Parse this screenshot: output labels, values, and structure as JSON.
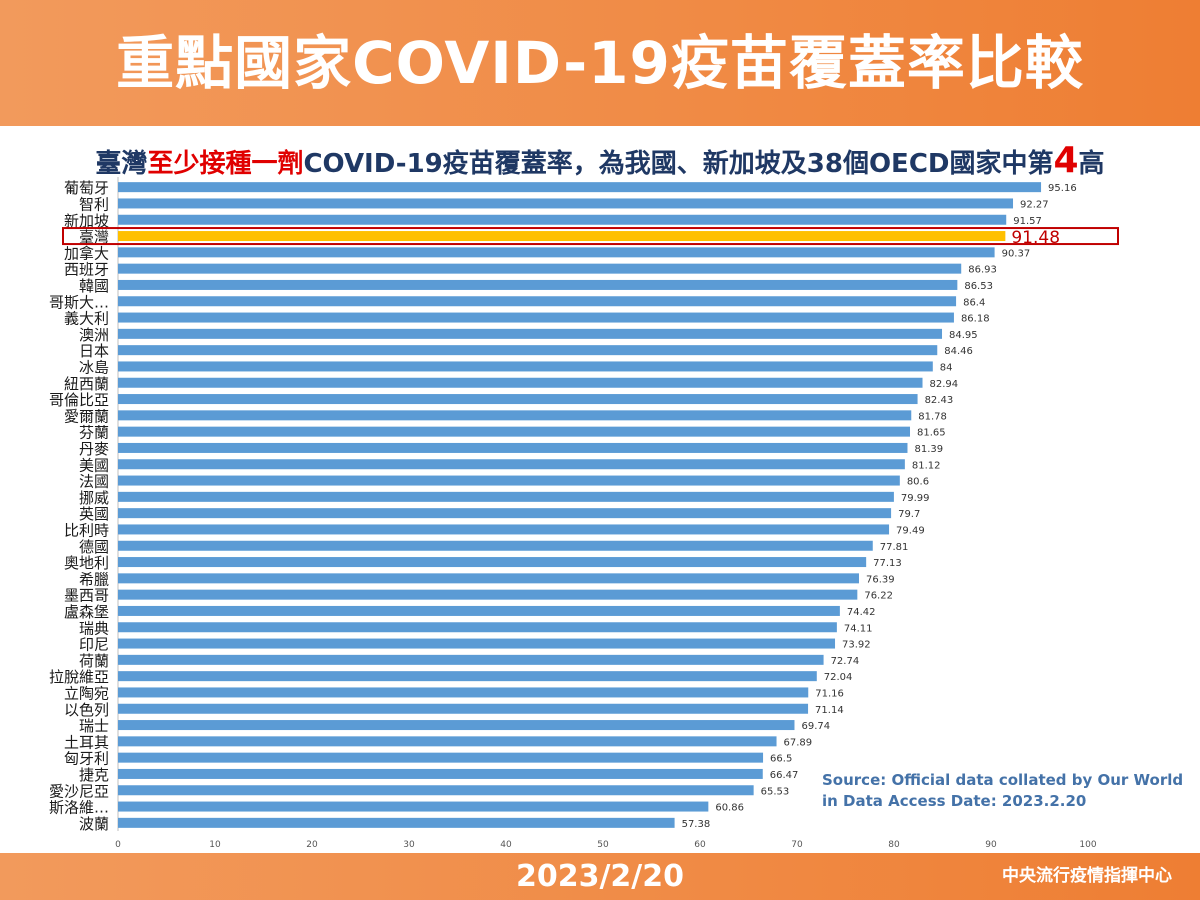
{
  "header": {
    "title": "重點國家COVID-19疫苗覆蓋率比較"
  },
  "subtitle": {
    "part1": "臺灣",
    "part2": "至少接種一劑",
    "part3": "COVID-19疫苗覆蓋率，為我國、新加坡及38個OECD國家中第",
    "part4": "4",
    "part5": "高"
  },
  "source": {
    "text": "Source: Official data collated by Our World in Data  Access Date: 2023.2.20"
  },
  "footer": {
    "date": "2023/2/20",
    "org": "中央流行疫情指揮中心"
  },
  "colors": {
    "bar": "#5b9bd5",
    "highlight_bar": "#ffc000",
    "highlight_border": "#c00000",
    "header_bg": "#f08a44",
    "subtitle_text": "#1f3864"
  },
  "chart_data": {
    "type": "bar",
    "orientation": "horizontal",
    "categories": [
      "葡萄牙",
      "智利",
      "新加坡",
      "臺灣",
      "加拿大",
      "西班牙",
      "韓國",
      "哥斯大…",
      "義大利",
      "澳洲",
      "日本",
      "冰島",
      "紐西蘭",
      "哥倫比亞",
      "愛爾蘭",
      "芬蘭",
      "丹麥",
      "美國",
      "法國",
      "挪威",
      "英國",
      "比利時",
      "德國",
      "奧地利",
      "希臘",
      "墨西哥",
      "盧森堡",
      "瑞典",
      "印尼",
      "荷蘭",
      "拉脫維亞",
      "立陶宛",
      "以色列",
      "瑞士",
      "土耳其",
      "匈牙利",
      "捷克",
      "愛沙尼亞",
      "斯洛維…",
      "波蘭"
    ],
    "values": [
      95.16,
      92.27,
      91.57,
      91.48,
      90.37,
      86.93,
      86.53,
      86.4,
      86.18,
      84.95,
      84.46,
      84,
      82.94,
      82.43,
      81.78,
      81.65,
      81.39,
      81.12,
      80.6,
      79.99,
      79.7,
      79.49,
      77.81,
      77.13,
      76.39,
      76.22,
      74.42,
      74.11,
      73.92,
      72.74,
      72.04,
      71.16,
      71.14,
      69.74,
      67.89,
      66.5,
      66.47,
      65.53,
      60.86,
      57.38
    ],
    "value_labels": [
      "95.16",
      "92.27",
      "91.57",
      "91.48",
      "90.37",
      "86.93",
      "86.53",
      "86.4",
      "86.18",
      "84.95",
      "84.46",
      "84",
      "82.94",
      "82.43",
      "81.78",
      "81.65",
      "81.39",
      "81.12",
      "80.6",
      "79.99",
      "79.7",
      "79.49",
      "77.81",
      "77.13",
      "76.39",
      "76.22",
      "74.42",
      "74.11",
      "73.92",
      "72.74",
      "72.04",
      "71.16",
      "71.14",
      "69.74",
      "67.89",
      "66.5",
      "66.47",
      "65.53",
      "60.86",
      "57.38"
    ],
    "highlight_index": 3,
    "xlim": [
      0,
      100
    ],
    "xticks": [
      "0",
      "10",
      "20",
      "30",
      "40",
      "50",
      "60",
      "70",
      "80",
      "90",
      "100"
    ],
    "grid": false,
    "title": "",
    "xlabel": "",
    "ylabel": ""
  }
}
